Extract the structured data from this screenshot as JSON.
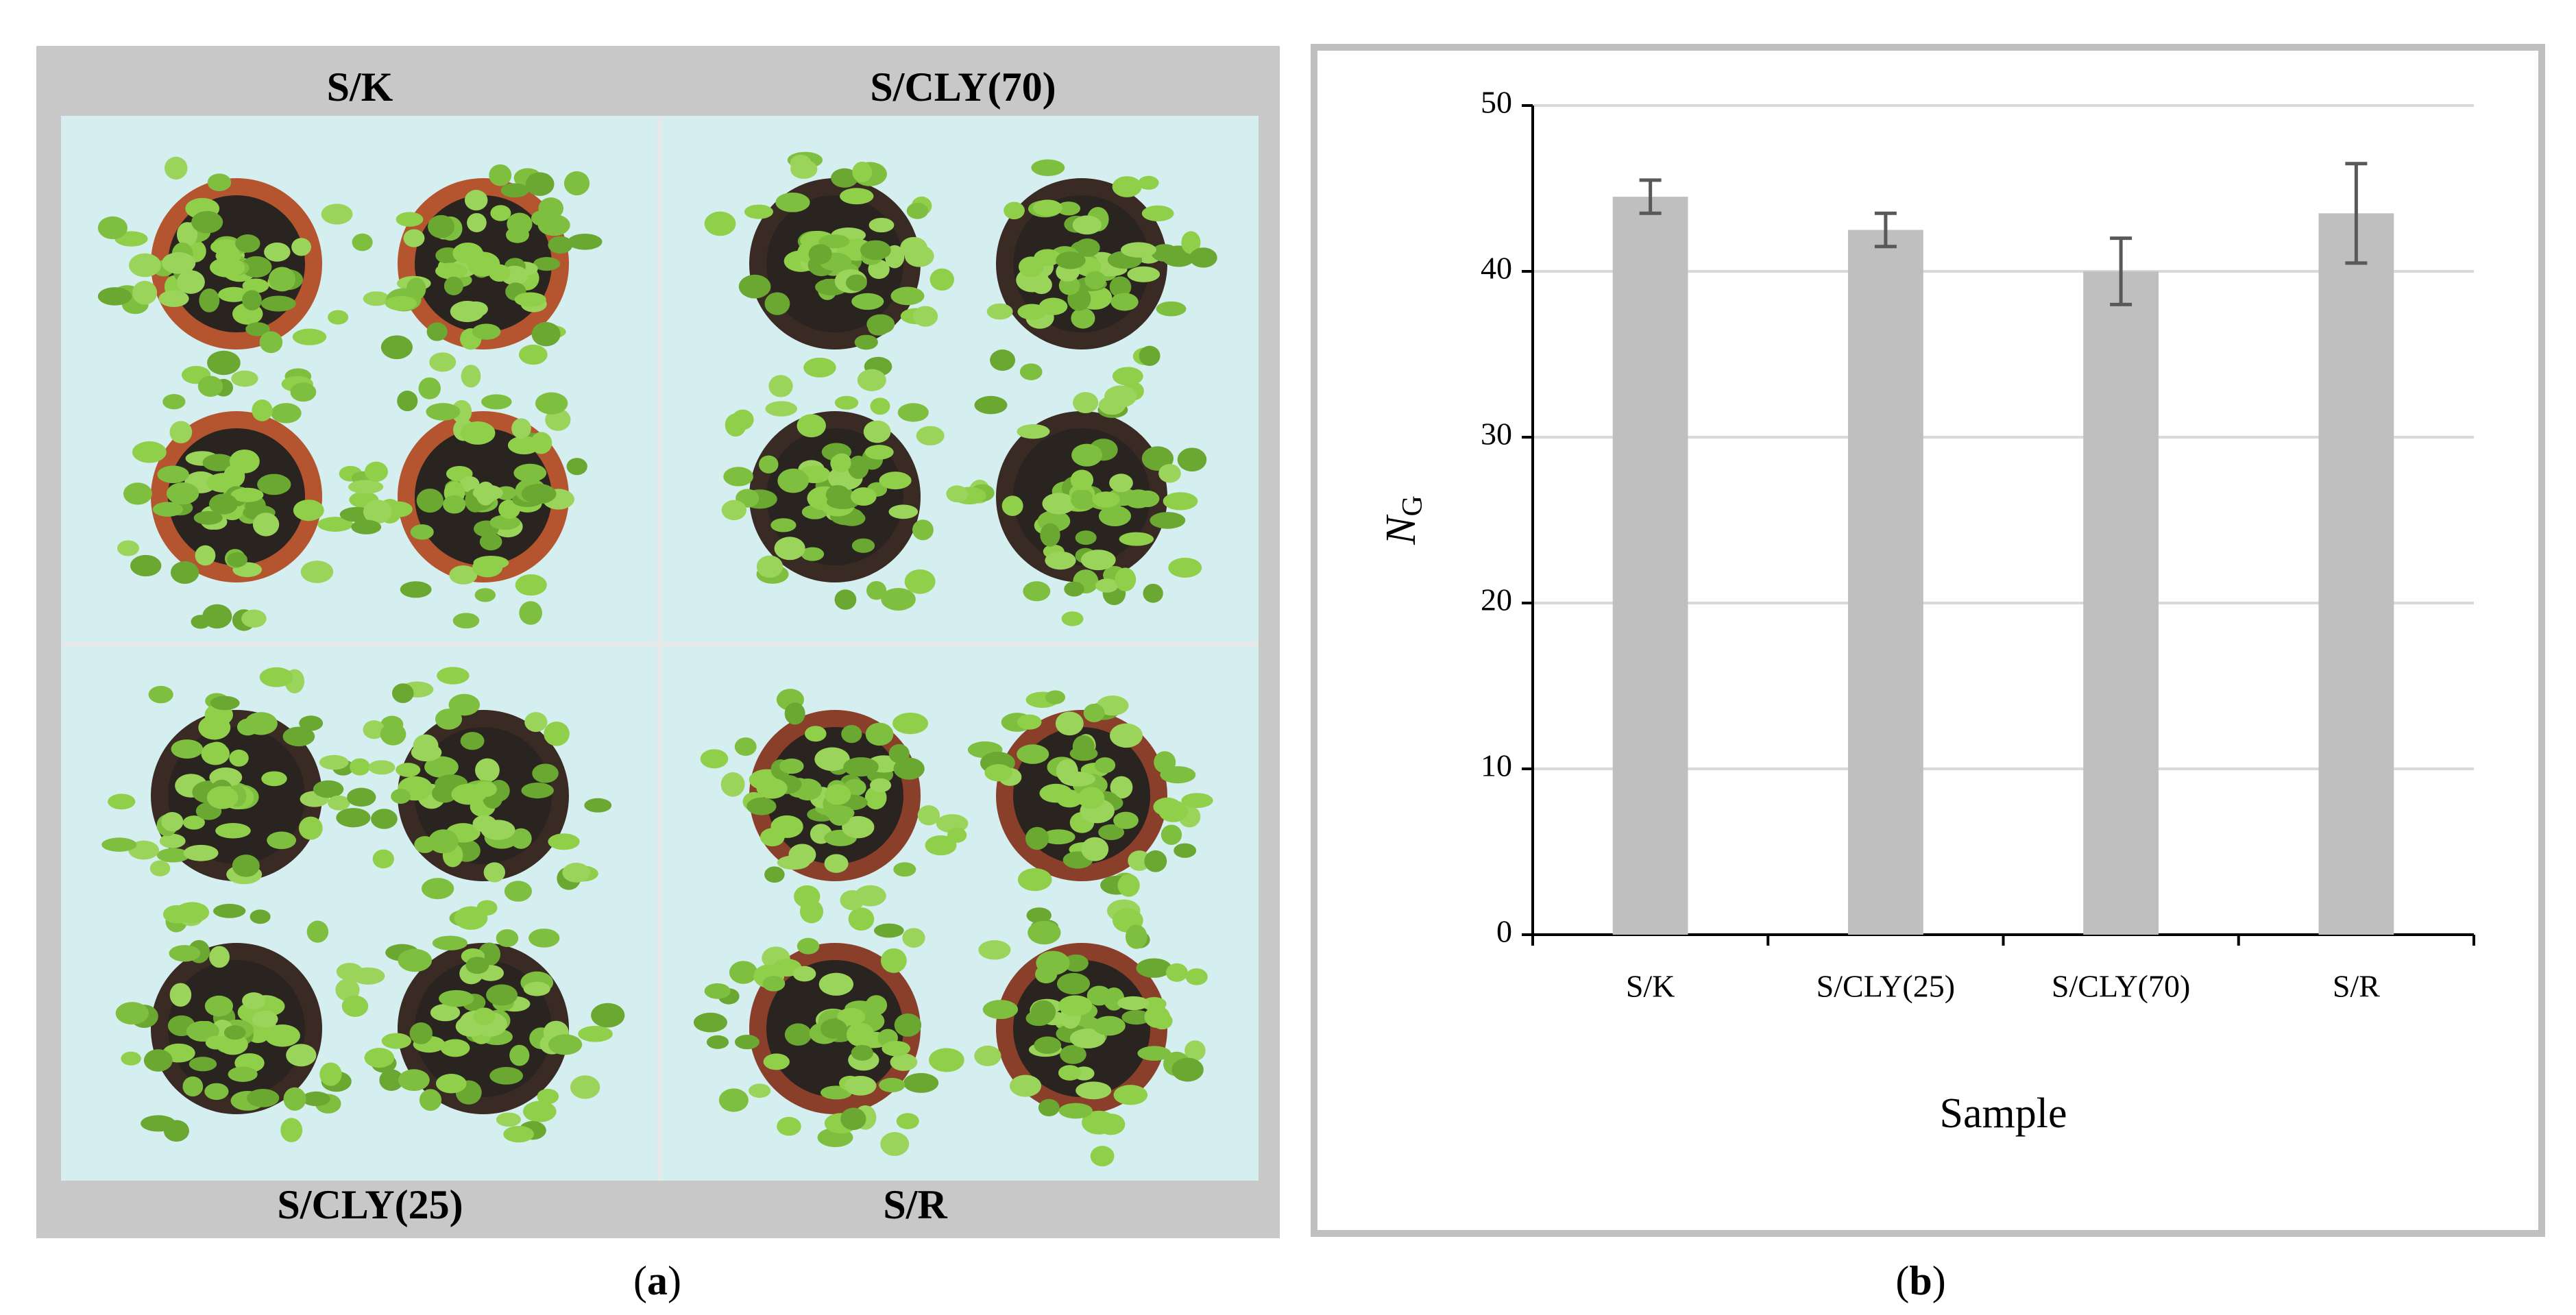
{
  "panel_a": {
    "labels": [
      "S/K",
      "S/CLY(70)",
      "S/CLY(25)",
      "S/R"
    ],
    "caption_parts": [
      "(",
      "a",
      ")"
    ]
  },
  "chart_data": {
    "type": "bar",
    "caption_parts": [
      "(",
      "b",
      ")"
    ],
    "xlabel": "Sample",
    "ylabel": "N",
    "ylabel_subscript": "G",
    "categories": [
      "S/K",
      "S/CLY(25)",
      "S/CLY(70)",
      "S/R"
    ],
    "values": [
      44.5,
      42.5,
      40,
      43.5
    ],
    "errors": [
      1,
      1,
      2,
      3
    ],
    "color": "#bfbfbf",
    "error_color": "#595959",
    "ylim": [
      0,
      50
    ],
    "yticks": [
      0,
      10,
      20,
      30,
      40,
      50
    ],
    "grid": true
  }
}
